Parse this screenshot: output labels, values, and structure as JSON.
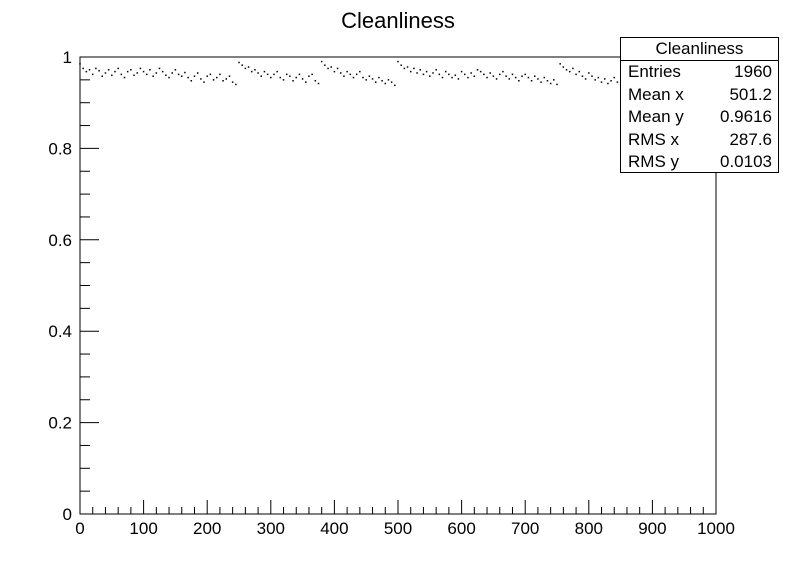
{
  "chart_data": {
    "type": "scatter",
    "title": "Cleanliness",
    "xlabel": "",
    "ylabel": "",
    "xlim": [
      0,
      1000
    ],
    "ylim": [
      0,
      1
    ],
    "x_ticks": [
      0,
      100,
      200,
      300,
      400,
      500,
      600,
      700,
      800,
      900,
      1000
    ],
    "y_ticks": [
      0,
      0.2,
      0.4,
      0.6,
      0.8,
      1
    ],
    "y_tick_labels": [
      "0",
      "0.2",
      "0.4",
      "0.6",
      "0.8",
      "1"
    ],
    "x_tick_labels": [
      "0",
      "100",
      "200",
      "300",
      "400",
      "500",
      "600",
      "700",
      "800",
      "900",
      "1000"
    ],
    "grid": false,
    "marker_color": "#000000",
    "series": [
      {
        "x": [
          0,
          5,
          10,
          15,
          20,
          25,
          30,
          35,
          40,
          45,
          50,
          55,
          60,
          65,
          70,
          75,
          80,
          85,
          90,
          95,
          100,
          105,
          110,
          115,
          120,
          125,
          130,
          135,
          140,
          145,
          150,
          155,
          160,
          165,
          170,
          175,
          180,
          185,
          190,
          195,
          200,
          205,
          210,
          215,
          220,
          225,
          230,
          235,
          240,
          245,
          250,
          255,
          260,
          265,
          270,
          275,
          280,
          285,
          290,
          295,
          300,
          305,
          310,
          315,
          320,
          325,
          330,
          335,
          340,
          345,
          350,
          355,
          360,
          365,
          370,
          375,
          380,
          385,
          390,
          395,
          400,
          405,
          410,
          415,
          420,
          425,
          430,
          435,
          440,
          445,
          450,
          455,
          460,
          465,
          470,
          475,
          480,
          485,
          490,
          495,
          500,
          505,
          510,
          515,
          520,
          525,
          530,
          535,
          540,
          545,
          550,
          555,
          560,
          565,
          570,
          575,
          580,
          585,
          590,
          595,
          600,
          605,
          610,
          615,
          620,
          625,
          630,
          635,
          640,
          645,
          650,
          655,
          660,
          665,
          670,
          675,
          680,
          685,
          690,
          695,
          700,
          705,
          710,
          715,
          720,
          725,
          730,
          735,
          740,
          745,
          750,
          755,
          760,
          765,
          770,
          775,
          780,
          785,
          790,
          795,
          800,
          805,
          810,
          815,
          820,
          825,
          830,
          835,
          840,
          845,
          850,
          855,
          860
        ],
        "y": [
          0.985,
          0.975,
          0.968,
          0.972,
          0.962,
          0.975,
          0.97,
          0.958,
          0.965,
          0.972,
          0.96,
          0.968,
          0.975,
          0.962,
          0.955,
          0.968,
          0.972,
          0.96,
          0.965,
          0.975,
          0.968,
          0.962,
          0.972,
          0.958,
          0.965,
          0.975,
          0.968,
          0.96,
          0.955,
          0.965,
          0.972,
          0.962,
          0.958,
          0.966,
          0.955,
          0.948,
          0.958,
          0.965,
          0.952,
          0.945,
          0.958,
          0.962,
          0.95,
          0.955,
          0.962,
          0.948,
          0.952,
          0.958,
          0.945,
          0.94,
          0.988,
          0.982,
          0.975,
          0.978,
          0.968,
          0.972,
          0.965,
          0.958,
          0.968,
          0.962,
          0.955,
          0.962,
          0.968,
          0.955,
          0.95,
          0.962,
          0.958,
          0.948,
          0.955,
          0.962,
          0.952,
          0.945,
          0.958,
          0.962,
          0.948,
          0.942,
          0.99,
          0.982,
          0.975,
          0.978,
          0.968,
          0.975,
          0.965,
          0.958,
          0.968,
          0.962,
          0.955,
          0.962,
          0.968,
          0.955,
          0.95,
          0.958,
          0.952,
          0.945,
          0.955,
          0.948,
          0.942,
          0.95,
          0.945,
          0.938,
          0.99,
          0.982,
          0.975,
          0.978,
          0.968,
          0.975,
          0.965,
          0.972,
          0.962,
          0.968,
          0.958,
          0.965,
          0.972,
          0.962,
          0.955,
          0.968,
          0.962,
          0.955,
          0.96,
          0.952,
          0.968,
          0.962,
          0.955,
          0.965,
          0.958,
          0.972,
          0.968,
          0.962,
          0.955,
          0.965,
          0.958,
          0.952,
          0.962,
          0.968,
          0.958,
          0.952,
          0.962,
          0.955,
          0.948,
          0.958,
          0.962,
          0.955,
          0.948,
          0.958,
          0.952,
          0.945,
          0.955,
          0.948,
          0.942,
          0.95,
          0.94,
          0.985,
          0.978,
          0.972,
          0.968,
          0.975,
          0.962,
          0.968,
          0.958,
          0.952,
          0.965,
          0.958,
          0.95,
          0.955,
          0.945,
          0.952,
          0.942,
          0.948,
          0.955,
          0.945,
          0.94,
          0.948,
          0.942
        ]
      }
    ]
  },
  "stats": {
    "title": "Cleanliness",
    "rows": [
      {
        "label": "Entries",
        "value": "1960"
      },
      {
        "label": "Mean x",
        "value": "501.2"
      },
      {
        "label": "Mean y",
        "value": "0.9616"
      },
      {
        "label": "RMS x",
        "value": "287.6"
      },
      {
        "label": "RMS y",
        "value": "0.0103"
      }
    ]
  }
}
